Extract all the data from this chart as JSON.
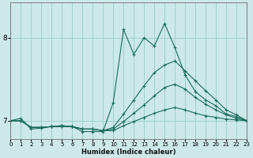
{
  "xlabel": "Humidex (Indice chaleur)",
  "background_color": "#cce8e8",
  "grid_color": "#99cccc",
  "line_color": "#1a6b5a",
  "xlim": [
    0,
    23
  ],
  "ylim": [
    6.78,
    8.42
  ],
  "yticks": [
    7,
    8
  ],
  "xticks": [
    0,
    1,
    2,
    3,
    4,
    5,
    6,
    7,
    8,
    9,
    10,
    11,
    12,
    13,
    14,
    15,
    16,
    17,
    18,
    19,
    20,
    21,
    22,
    23
  ],
  "series": [
    {
      "x": [
        0,
        1,
        2,
        3,
        4,
        5,
        6,
        7,
        8,
        9,
        10,
        11,
        12,
        13,
        14,
        15,
        16,
        17,
        18,
        19,
        20,
        21,
        22,
        23
      ],
      "y": [
        7.0,
        7.03,
        6.9,
        6.91,
        6.93,
        6.94,
        6.93,
        6.87,
        6.87,
        6.87,
        7.22,
        8.1,
        7.8,
        8.0,
        7.9,
        8.17,
        7.88,
        7.55,
        7.35,
        7.25,
        7.18,
        7.08,
        7.05,
        7.0
      ]
    },
    {
      "x": [
        0,
        1,
        2,
        3,
        4,
        5,
        6,
        7,
        8,
        9,
        10,
        11,
        12,
        13,
        14,
        15,
        16,
        17,
        18,
        19,
        20,
        21,
        22,
        23
      ],
      "y": [
        7.0,
        7.0,
        6.92,
        6.92,
        6.93,
        6.94,
        6.93,
        6.9,
        6.9,
        6.88,
        6.92,
        7.08,
        7.25,
        7.42,
        7.58,
        7.67,
        7.72,
        7.6,
        7.48,
        7.36,
        7.25,
        7.13,
        7.07,
        7.0
      ]
    },
    {
      "x": [
        0,
        1,
        2,
        3,
        4,
        5,
        6,
        7,
        8,
        9,
        10,
        11,
        12,
        13,
        14,
        15,
        16,
        17,
        18,
        19,
        20,
        21,
        22,
        23
      ],
      "y": [
        7.0,
        7.0,
        6.92,
        6.92,
        6.93,
        6.93,
        6.93,
        6.9,
        6.9,
        6.88,
        6.9,
        6.99,
        7.09,
        7.19,
        7.3,
        7.4,
        7.44,
        7.38,
        7.28,
        7.2,
        7.13,
        7.07,
        7.03,
        7.0
      ]
    },
    {
      "x": [
        0,
        1,
        2,
        3,
        4,
        5,
        6,
        7,
        8,
        9,
        10,
        11,
        12,
        13,
        14,
        15,
        16,
        17,
        18,
        19,
        20,
        21,
        22,
        23
      ],
      "y": [
        7.0,
        7.0,
        6.92,
        6.92,
        6.93,
        6.93,
        6.93,
        6.9,
        6.9,
        6.88,
        6.88,
        6.94,
        6.99,
        7.04,
        7.09,
        7.13,
        7.16,
        7.13,
        7.09,
        7.06,
        7.04,
        7.02,
        7.01,
        7.0
      ]
    }
  ]
}
